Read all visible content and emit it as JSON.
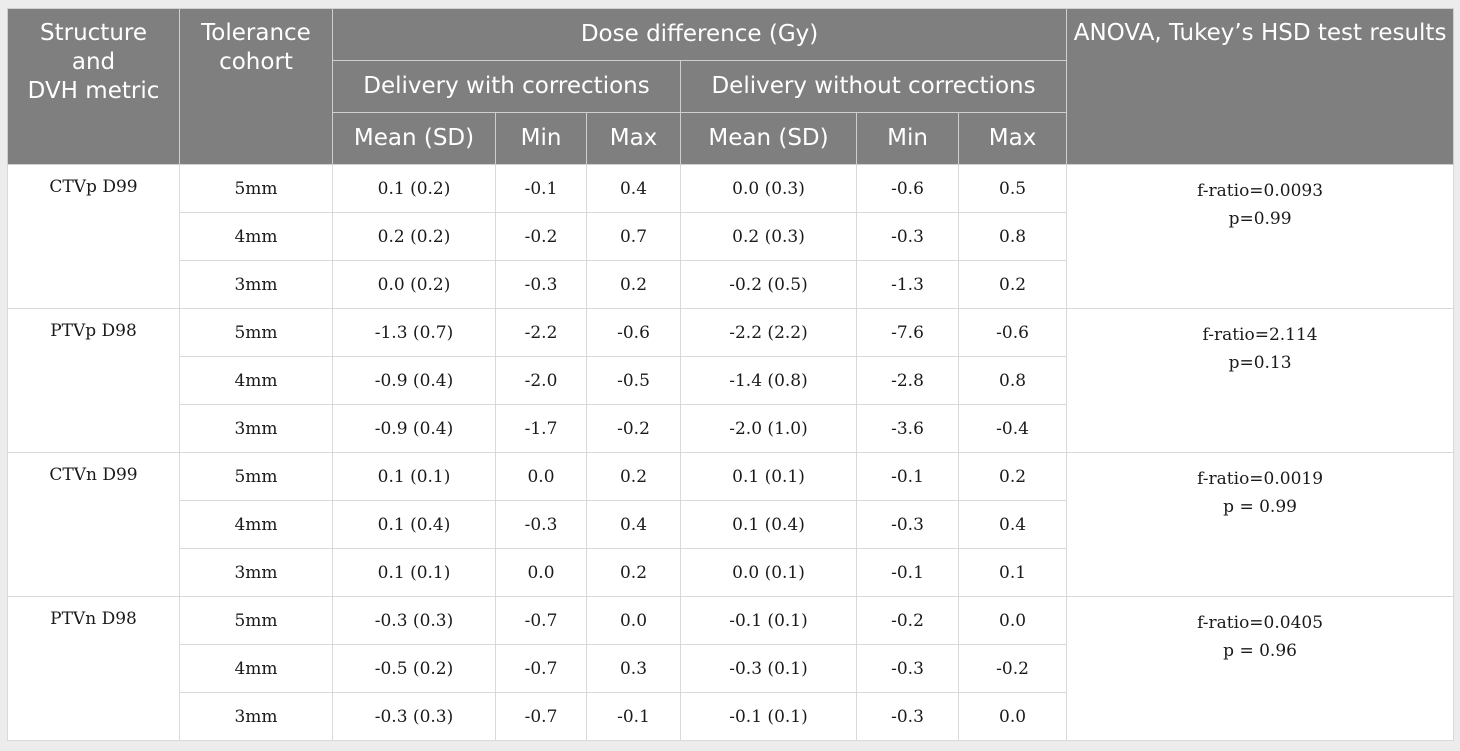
{
  "header": {
    "structure": "Structure and DVH metric",
    "structure_lines": [
      "Structure",
      "and",
      "DVH metric"
    ],
    "tolerance_lines": [
      "Tolerance",
      "cohort"
    ],
    "dose_difference": "Dose difference (Gy)",
    "with_corrections": "Delivery with corrections",
    "without_corrections": "Delivery without corrections",
    "anova": "ANOVA, Tukey’s HSD test results",
    "mean_sd": "Mean (SD)",
    "min": "Min",
    "max": "Max"
  },
  "groups": [
    {
      "structure": "CTVp D99",
      "anova_f": "f-ratio=0.0093",
      "anova_p": "p=0.99",
      "rows": [
        {
          "tolerance": "5mm",
          "with_mean": "0.1 (0.2)",
          "with_min": "-0.1",
          "with_max": "0.4",
          "without_mean": "0.0 (0.3)",
          "without_min": "-0.6",
          "without_max": "0.5"
        },
        {
          "tolerance": "4mm",
          "with_mean": "0.2 (0.2)",
          "with_min": "-0.2",
          "with_max": "0.7",
          "without_mean": "0.2 (0.3)",
          "without_min": "-0.3",
          "without_max": "0.8"
        },
        {
          "tolerance": "3mm",
          "with_mean": "0.0 (0.2)",
          "with_min": "-0.3",
          "with_max": "0.2",
          "without_mean": "-0.2 (0.5)",
          "without_min": "-1.3",
          "without_max": "0.2"
        }
      ]
    },
    {
      "structure": "PTVp D98",
      "anova_f": "f-ratio=2.114",
      "anova_p": "p=0.13",
      "rows": [
        {
          "tolerance": "5mm",
          "with_mean": "-1.3 (0.7)",
          "with_min": "-2.2",
          "with_max": "-0.6",
          "without_mean": "-2.2 (2.2)",
          "without_min": "-7.6",
          "without_max": "-0.6"
        },
        {
          "tolerance": "4mm",
          "with_mean": "-0.9 (0.4)",
          "with_min": "-2.0",
          "with_max": "-0.5",
          "without_mean": "-1.4 (0.8)",
          "without_min": "-2.8",
          "without_max": "0.8"
        },
        {
          "tolerance": "3mm",
          "with_mean": "-0.9 (0.4)",
          "with_min": "-1.7",
          "with_max": "-0.2",
          "without_mean": "-2.0 (1.0)",
          "without_min": "-3.6",
          "without_max": "-0.4"
        }
      ]
    },
    {
      "structure": "CTVn D99",
      "anova_f": "f-ratio=0.0019",
      "anova_p": "p = 0.99",
      "rows": [
        {
          "tolerance": "5mm",
          "with_mean": "0.1 (0.1)",
          "with_min": "0.0",
          "with_max": "0.2",
          "without_mean": "0.1 (0.1)",
          "without_min": "-0.1",
          "without_max": "0.2"
        },
        {
          "tolerance": "4mm",
          "with_mean": "0.1 (0.4)",
          "with_min": "-0.3",
          "with_max": "0.4",
          "without_mean": "0.1 (0.4)",
          "without_min": "-0.3",
          "without_max": "0.4"
        },
        {
          "tolerance": "3mm",
          "with_mean": "0.1 (0.1)",
          "with_min": "0.0",
          "with_max": "0.2",
          "without_mean": "0.0 (0.1)",
          "without_min": "-0.1",
          "without_max": "0.1"
        }
      ]
    },
    {
      "structure": "PTVn D98",
      "anova_f": "f-ratio=0.0405",
      "anova_p": "p = 0.96",
      "rows": [
        {
          "tolerance": "5mm",
          "with_mean": "-0.3 (0.3)",
          "with_min": "-0.7",
          "with_max": "0.0",
          "without_mean": "-0.1 (0.1)",
          "without_min": "-0.2",
          "without_max": "0.0"
        },
        {
          "tolerance": "4mm",
          "with_mean": "-0.5 (0.2)",
          "with_min": "-0.7",
          "with_max": "0.3",
          "without_mean": "-0.3 (0.1)",
          "without_min": "-0.3",
          "without_max": "-0.2"
        },
        {
          "tolerance": "3mm",
          "with_mean": "-0.3 (0.3)",
          "with_min": "-0.7",
          "with_max": "-0.1",
          "without_mean": "-0.1 (0.1)",
          "without_min": "-0.3",
          "without_max": "0.0"
        }
      ]
    }
  ]
}
